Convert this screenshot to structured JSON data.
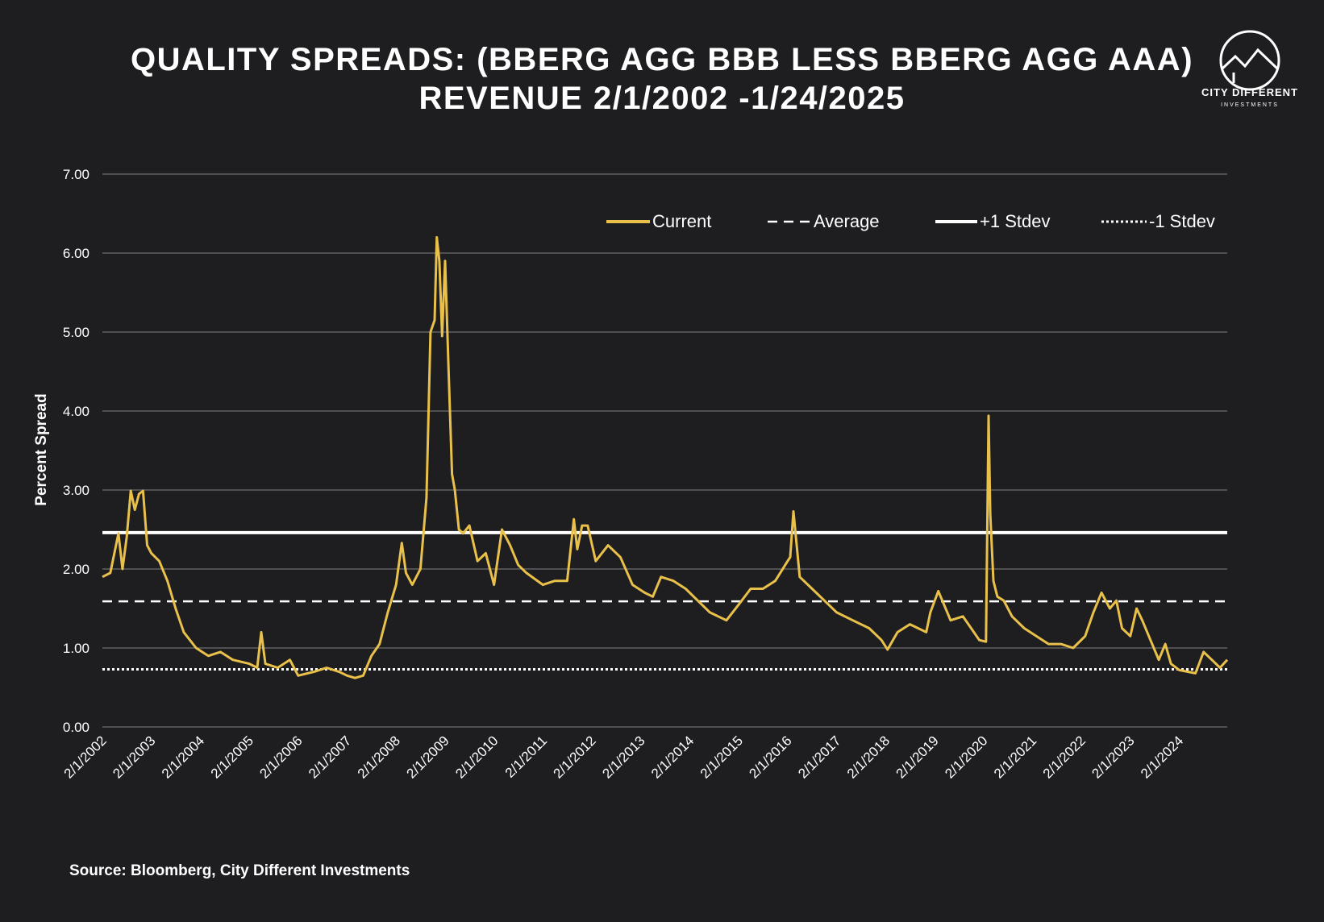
{
  "header": {
    "title_line1": "QUALITY SPREADS: (BBERG AGG BBB LESS BBERG AGG AAA)",
    "title_line2": "REVENUE 2/1/2002 -1/24/2025"
  },
  "logo": {
    "name": "CITY DIFFERENT",
    "sub": "INVESTMENTS",
    "icon": "mountain-circle-icon"
  },
  "source": "Source: Bloomberg, City Different Investments",
  "colors": {
    "background": "#1e1e21",
    "current": "#e8c04a",
    "reference_lines": "#ffffff",
    "grid": "#6e6e72"
  },
  "chart_data": {
    "type": "line",
    "title": "QUALITY SPREADS: (BBERG AGG BBB LESS BBERG AGG AAA) REVENUE 2/1/2002 -1/24/2025",
    "xlabel": "",
    "ylabel": "Percent Spread",
    "ylim": [
      0,
      7
    ],
    "yticks": [
      "0.00",
      "1.00",
      "2.00",
      "3.00",
      "4.00",
      "5.00",
      "6.00",
      "7.00"
    ],
    "xlim": [
      "2002-02-01",
      "2025-01-24"
    ],
    "xticks": [
      "2/1/2002",
      "2/1/2003",
      "2/1/2004",
      "2/1/2005",
      "2/1/2006",
      "2/1/2007",
      "2/1/2008",
      "2/1/2009",
      "2/1/2010",
      "2/1/2011",
      "2/1/2012",
      "2/1/2013",
      "2/1/2014",
      "2/1/2015",
      "2/1/2016",
      "2/1/2017",
      "2/1/2018",
      "2/1/2019",
      "2/1/2020",
      "2/1/2021",
      "2/1/2022",
      "2/1/2023",
      "2/1/2024"
    ],
    "grid": true,
    "legend_position": "top-right",
    "series": [
      {
        "name": "Current",
        "style": "solid",
        "x": [
          "2002-02-01",
          "2002-04-01",
          "2002-06-01",
          "2002-07-01",
          "2002-08-01",
          "2002-09-01",
          "2002-10-01",
          "2002-11-01",
          "2002-12-01",
          "2003-01-01",
          "2003-02-01",
          "2003-04-01",
          "2003-06-01",
          "2003-08-01",
          "2003-10-01",
          "2004-01-01",
          "2004-04-01",
          "2004-07-01",
          "2004-10-01",
          "2005-02-01",
          "2005-04-01",
          "2005-05-01",
          "2005-06-01",
          "2005-09-01",
          "2005-12-01",
          "2006-02-01",
          "2006-06-01",
          "2006-09-01",
          "2006-12-01",
          "2007-02-01",
          "2007-04-01",
          "2007-06-01",
          "2007-08-01",
          "2007-10-01",
          "2007-12-01",
          "2008-02-01",
          "2008-03-15",
          "2008-04-15",
          "2008-06-01",
          "2008-08-01",
          "2008-09-15",
          "2008-10-15",
          "2008-11-15",
          "2008-12-01",
          "2008-12-20",
          "2009-01-10",
          "2009-02-01",
          "2009-03-01",
          "2009-03-25",
          "2009-04-15",
          "2009-05-15",
          "2009-06-15",
          "2009-08-01",
          "2009-10-01",
          "2009-12-01",
          "2010-02-01",
          "2010-04-01",
          "2010-06-01",
          "2010-08-01",
          "2010-10-01",
          "2011-02-01",
          "2011-05-01",
          "2011-08-01",
          "2011-09-20",
          "2011-10-15",
          "2011-11-20",
          "2012-01-01",
          "2012-03-01",
          "2012-06-01",
          "2012-09-01",
          "2012-12-01",
          "2013-03-01",
          "2013-05-01",
          "2013-07-01",
          "2013-10-01",
          "2014-01-01",
          "2014-04-01",
          "2014-07-01",
          "2014-09-01",
          "2014-11-01",
          "2015-02-01",
          "2015-05-01",
          "2015-08-01",
          "2015-11-01",
          "2016-02-01",
          "2016-02-20",
          "2016-03-15",
          "2016-05-01",
          "2016-08-01",
          "2016-11-01",
          "2017-02-01",
          "2017-06-01",
          "2017-10-01",
          "2018-01-01",
          "2018-02-15",
          "2018-05-01",
          "2018-08-01",
          "2018-10-01",
          "2018-12-01",
          "2019-01-01",
          "2019-03-01",
          "2019-06-01",
          "2019-09-01",
          "2019-11-01",
          "2020-01-01",
          "2020-02-20",
          "2020-03-10",
          "2020-03-23",
          "2020-04-15",
          "2020-05-15",
          "2020-07-01",
          "2020-09-01",
          "2020-12-01",
          "2021-03-01",
          "2021-06-01",
          "2021-09-01",
          "2021-12-01",
          "2022-03-01",
          "2022-05-01",
          "2022-07-01",
          "2022-09-01",
          "2022-10-20",
          "2022-12-01",
          "2023-02-01",
          "2023-03-20",
          "2023-05-01",
          "2023-07-01",
          "2023-09-01",
          "2023-10-20",
          "2023-12-01",
          "2024-02-01",
          "2024-04-01",
          "2024-06-01",
          "2024-08-01",
          "2024-10-01",
          "2024-12-01",
          "2025-01-24"
        ],
        "y": [
          1.9,
          1.95,
          2.45,
          2.0,
          2.4,
          2.99,
          2.75,
          2.95,
          2.99,
          2.3,
          2.2,
          2.1,
          1.85,
          1.5,
          1.2,
          1.0,
          0.9,
          0.95,
          0.85,
          0.8,
          0.75,
          1.2,
          0.8,
          0.75,
          0.85,
          0.65,
          0.7,
          0.75,
          0.7,
          0.65,
          0.62,
          0.65,
          0.9,
          1.05,
          1.45,
          1.8,
          2.33,
          1.95,
          1.8,
          2.0,
          2.9,
          5.0,
          5.15,
          6.2,
          5.9,
          4.95,
          5.9,
          4.4,
          3.2,
          3.0,
          2.5,
          2.45,
          2.55,
          2.1,
          2.2,
          1.8,
          2.5,
          2.3,
          2.05,
          1.95,
          1.8,
          1.85,
          1.85,
          2.63,
          2.25,
          2.55,
          2.55,
          2.1,
          2.3,
          2.15,
          1.8,
          1.7,
          1.65,
          1.9,
          1.85,
          1.75,
          1.6,
          1.45,
          1.4,
          1.35,
          1.55,
          1.75,
          1.75,
          1.85,
          2.1,
          2.15,
          2.73,
          1.9,
          1.75,
          1.6,
          1.45,
          1.35,
          1.25,
          1.1,
          0.98,
          1.2,
          1.3,
          1.25,
          1.2,
          1.45,
          1.72,
          1.35,
          1.4,
          1.25,
          1.1,
          1.08,
          3.94,
          2.7,
          1.85,
          1.65,
          1.6,
          1.4,
          1.25,
          1.15,
          1.05,
          1.05,
          1.0,
          1.15,
          1.45,
          1.7,
          1.5,
          1.6,
          1.25,
          1.15,
          1.5,
          1.35,
          1.1,
          0.85,
          1.05,
          0.8,
          0.72,
          0.7,
          0.68,
          0.95,
          0.85,
          0.75,
          0.85
        ]
      },
      {
        "name": "Average",
        "style": "dashed",
        "y": 1.59
      },
      {
        "name": "+1 Stdev",
        "style": "solid-thick",
        "y": 2.46
      },
      {
        "name": "-1 Stdev",
        "style": "dotted",
        "y": 0.73
      }
    ]
  }
}
